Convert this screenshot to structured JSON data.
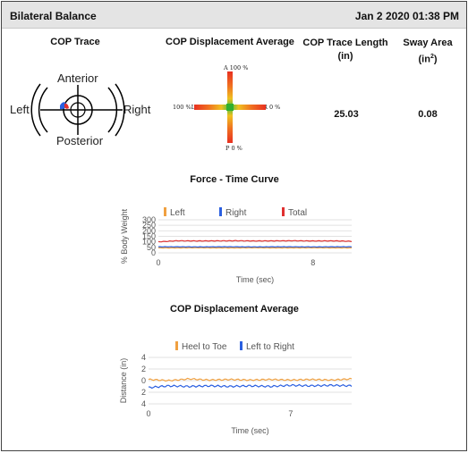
{
  "header": {
    "title": "Bilateral Balance",
    "date": "Jan 2 2020 01:38 PM"
  },
  "cop_trace": {
    "title": "COP Trace",
    "anterior": "Anterior",
    "posterior": "Posterior",
    "left": "Left",
    "right": "Right"
  },
  "cop_displacement_avg": {
    "title": "COP Displacement Average",
    "top": "A 100 %",
    "left": "100 %L",
    "right": "R 0 %",
    "bottom": "P  0 %"
  },
  "trace_length": {
    "label_line1": "COP Trace Length",
    "label_line2": "(in)",
    "value": "25.03"
  },
  "sway_area": {
    "label_line1": "Sway Area",
    "label_line2_pre": "(in",
    "label_line2_sup": "2",
    "label_line2_post": ")",
    "value": "0.08"
  },
  "force_chart_title": "Force - Time Curve",
  "cop_chart_title": "COP Displacement Average",
  "colors": {
    "left": "#f0a040",
    "right": "#2a5fe0",
    "total": "#e03030",
    "heel_toe": "#f0a040",
    "left_right": "#2a5fe0"
  },
  "chart_data": [
    {
      "type": "line",
      "title": "Force - Time Curve",
      "xlabel": "Time (sec)",
      "ylabel": "% Body Weight",
      "xlim": [
        0,
        10
      ],
      "ylim": [
        0,
        300
      ],
      "xticks": [
        "0",
        "8"
      ],
      "xtick_values": [
        0,
        8
      ],
      "yticks": [
        "0",
        "50",
        "100",
        "150",
        "200",
        "250",
        "300"
      ],
      "series": [
        {
          "name": "Left",
          "color": "#f0a040",
          "x": [
            0,
            1,
            2,
            3,
            4,
            5,
            6,
            7,
            8,
            9,
            10
          ],
          "values": [
            45,
            45,
            46,
            45,
            45,
            46,
            45,
            45,
            46,
            45,
            45
          ]
        },
        {
          "name": "Right",
          "color": "#2a5fe0",
          "x": [
            0,
            1,
            2,
            3,
            4,
            5,
            6,
            7,
            8,
            9,
            10
          ],
          "values": [
            55,
            55,
            54,
            55,
            55,
            54,
            55,
            55,
            54,
            55,
            55
          ]
        },
        {
          "name": "Total",
          "color": "#e03030",
          "x": [
            0,
            1,
            2,
            3,
            4,
            5,
            6,
            7,
            8,
            9,
            10
          ],
          "values": [
            100,
            110,
            108,
            109,
            110,
            108,
            109,
            110,
            108,
            109,
            105
          ]
        }
      ]
    },
    {
      "type": "line",
      "title": "COP Displacement Average",
      "xlabel": "Time (sec)",
      "ylabel": "Distance (in)",
      "xlim": [
        0,
        10
      ],
      "ylim": [
        -4,
        4
      ],
      "xticks": [
        "0",
        "7"
      ],
      "xtick_values": [
        0,
        7
      ],
      "yticks": [
        "4",
        "2",
        "0",
        "2",
        "4"
      ],
      "ytick_values": [
        4,
        2,
        0,
        -2,
        -4
      ],
      "series": [
        {
          "name": "Heel to Toe",
          "color": "#f0a040",
          "x": [
            0,
            1,
            2,
            3,
            4,
            5,
            6,
            7,
            8,
            9,
            10
          ],
          "values": [
            0.2,
            0.0,
            0.3,
            0.1,
            0.2,
            0.1,
            0.2,
            0.1,
            0.2,
            0.1,
            0.3
          ]
        },
        {
          "name": "Left to Right",
          "color": "#2a5fe0",
          "x": [
            0,
            1,
            2,
            3,
            4,
            5,
            6,
            7,
            8,
            9,
            10
          ],
          "values": [
            -1.2,
            -0.9,
            -1.0,
            -0.9,
            -1.0,
            -0.9,
            -1.0,
            -0.8,
            -0.9,
            -0.8,
            -0.9
          ]
        }
      ]
    }
  ]
}
